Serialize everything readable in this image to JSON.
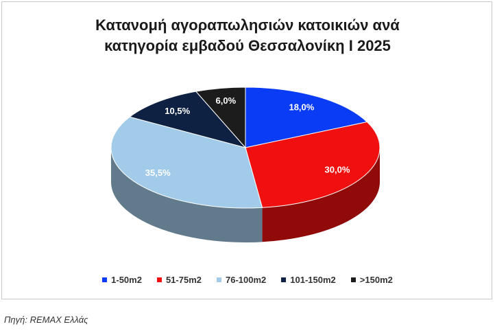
{
  "chart_data": {
    "type": "pie3d",
    "title": "Κατανομή αγοραπωλησιών κατοικιών ανά κατηγορία εμβαδού Θεσσαλονίκη Ι 2025",
    "categories": [
      "1-50m2",
      "51-75m2",
      "76-100m2",
      "101-150m2",
      ">150m2"
    ],
    "values": [
      18.0,
      30.0,
      35.5,
      10.5,
      6.0
    ],
    "value_labels": [
      "18,0%",
      "30,0%",
      "35,5%",
      "10,5%",
      "6,0%"
    ],
    "colors": [
      "#0a3cf5",
      "#f01010",
      "#a2cbea",
      "#0f2142",
      "#1c1c1c"
    ],
    "legend": "bottom",
    "source": "Πηγή: REMAX Ελλάς"
  }
}
